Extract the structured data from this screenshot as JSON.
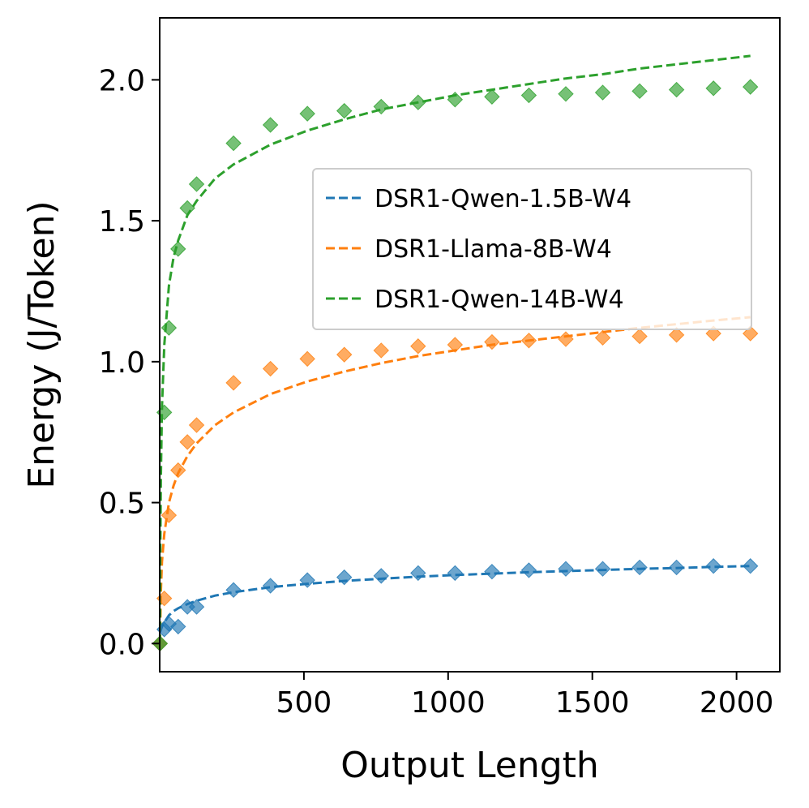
{
  "chart_data": {
    "type": "scatter",
    "title": "",
    "xlabel": "Output Length",
    "ylabel": "Energy (J/Token)",
    "xlim": [
      0,
      2150
    ],
    "ylim": [
      -0.1,
      2.22
    ],
    "xticks": [
      500,
      1000,
      1500,
      2000
    ],
    "xtick_labels": [
      "500",
      "1000",
      "1500",
      "2000"
    ],
    "yticks": [
      0.0,
      0.5,
      1.0,
      1.5,
      2.0
    ],
    "ytick_labels": [
      "0.0",
      "0.5",
      "1.0",
      "1.5",
      "2.0"
    ],
    "grid": false,
    "legend_position": "upper-right",
    "series": [
      {
        "name": "DSR1-Qwen-1.5B-W4",
        "color": "#1f77b4",
        "x": [
          1,
          16,
          32,
          64,
          96,
          128,
          256,
          384,
          512,
          640,
          768,
          896,
          1024,
          1152,
          1280,
          1408,
          1536,
          1664,
          1792,
          1920,
          2048
        ],
        "y": [
          0.0,
          0.05,
          0.07,
          0.06,
          0.13,
          0.13,
          0.19,
          0.205,
          0.225,
          0.235,
          0.24,
          0.25,
          0.25,
          0.255,
          0.26,
          0.265,
          0.265,
          0.27,
          0.27,
          0.275,
          0.275
        ],
        "fit_x": [
          1,
          8,
          16,
          32,
          48,
          64,
          96,
          128,
          192,
          256,
          384,
          512,
          640,
          768,
          896,
          1024,
          1152,
          1280,
          1408,
          1536,
          1664,
          1792,
          1920,
          2048
        ],
        "fit_y": [
          0.04,
          0.06,
          0.075,
          0.1,
          0.115,
          0.125,
          0.14,
          0.152,
          0.17,
          0.182,
          0.2,
          0.212,
          0.222,
          0.23,
          0.237,
          0.243,
          0.248,
          0.253,
          0.257,
          0.261,
          0.265,
          0.268,
          0.272,
          0.275
        ]
      },
      {
        "name": "DSR1-Llama-8B-W4",
        "color": "#ff7f0e",
        "x": [
          1,
          16,
          32,
          64,
          96,
          128,
          256,
          384,
          512,
          640,
          768,
          896,
          1024,
          1152,
          1280,
          1408,
          1536,
          1664,
          1792,
          1920,
          2048
        ],
        "y": [
          0.0,
          0.16,
          0.455,
          0.615,
          0.715,
          0.775,
          0.925,
          0.975,
          1.01,
          1.025,
          1.04,
          1.055,
          1.06,
          1.07,
          1.075,
          1.08,
          1.085,
          1.09,
          1.095,
          1.1,
          1.1
        ],
        "fit_x": [
          1,
          4,
          8,
          16,
          32,
          48,
          64,
          96,
          128,
          192,
          256,
          384,
          512,
          640,
          768,
          896,
          1024,
          1152,
          1280,
          1408,
          1536,
          1664,
          1792,
          1920,
          2048
        ],
        "fit_y": [
          0.0,
          0.18,
          0.29,
          0.39,
          0.5,
          0.56,
          0.605,
          0.665,
          0.71,
          0.775,
          0.82,
          0.885,
          0.93,
          0.965,
          0.995,
          1.02,
          1.04,
          1.06,
          1.075,
          1.09,
          1.105,
          1.12,
          1.133,
          1.146,
          1.158
        ]
      },
      {
        "name": "DSR1-Qwen-14B-W4",
        "color": "#2ca02c",
        "x": [
          1,
          16,
          32,
          64,
          96,
          128,
          256,
          384,
          512,
          640,
          768,
          896,
          1024,
          1152,
          1280,
          1408,
          1536,
          1664,
          1792,
          1920,
          2048
        ],
        "y": [
          0.0,
          0.82,
          1.12,
          1.4,
          1.545,
          1.63,
          1.775,
          1.84,
          1.88,
          1.89,
          1.905,
          1.92,
          1.93,
          1.94,
          1.945,
          1.95,
          1.955,
          1.96,
          1.965,
          1.97,
          1.975
        ],
        "fit_x": [
          1,
          2,
          4,
          8,
          16,
          32,
          48,
          64,
          96,
          128,
          192,
          256,
          384,
          512,
          640,
          768,
          896,
          1024,
          1152,
          1280,
          1408,
          1536,
          1664,
          1792,
          1920,
          2048
        ],
        "fit_y": [
          0.0,
          0.3,
          0.58,
          0.84,
          1.06,
          1.27,
          1.37,
          1.43,
          1.52,
          1.57,
          1.65,
          1.7,
          1.77,
          1.82,
          1.86,
          1.895,
          1.92,
          1.945,
          1.965,
          1.985,
          2.005,
          2.02,
          2.04,
          2.055,
          2.07,
          2.085
        ]
      }
    ]
  }
}
